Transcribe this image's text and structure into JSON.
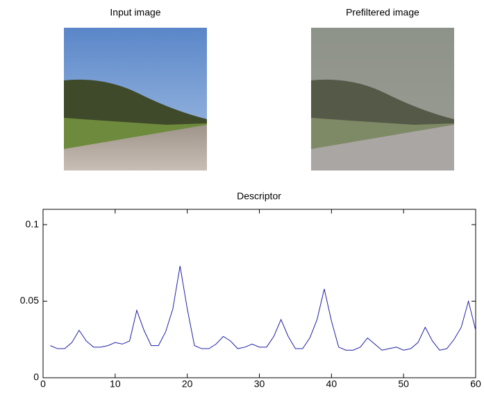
{
  "images": [
    {
      "title": "Input image"
    },
    {
      "title": "Prefiltered image"
    }
  ],
  "chart_data": {
    "type": "line",
    "title": "Descriptor",
    "x": [
      1,
      2,
      3,
      4,
      5,
      6,
      7,
      8,
      9,
      10,
      11,
      12,
      13,
      14,
      15,
      16,
      17,
      18,
      19,
      20,
      21,
      22,
      23,
      24,
      25,
      26,
      27,
      28,
      29,
      30,
      31,
      32,
      33,
      34,
      35,
      36,
      37,
      38,
      39,
      40,
      41,
      42,
      43,
      44,
      45,
      46,
      47,
      48,
      49,
      50,
      51,
      52,
      53,
      54,
      55,
      56,
      57,
      58,
      59,
      60
    ],
    "series": [
      {
        "color": "#1f1fa8",
        "values": [
          0.021,
          0.019,
          0.019,
          0.023,
          0.031,
          0.024,
          0.02,
          0.02,
          0.021,
          0.023,
          0.022,
          0.024,
          0.044,
          0.031,
          0.021,
          0.021,
          0.03,
          0.045,
          0.073,
          0.045,
          0.021,
          0.019,
          0.019,
          0.022,
          0.027,
          0.024,
          0.019,
          0.02,
          0.022,
          0.02,
          0.02,
          0.027,
          0.038,
          0.027,
          0.019,
          0.019,
          0.026,
          0.038,
          0.058,
          0.037,
          0.02,
          0.018,
          0.018,
          0.02,
          0.026,
          0.022,
          0.018,
          0.019,
          0.02,
          0.018,
          0.019,
          0.023,
          0.033,
          0.024,
          0.018,
          0.019,
          0.025,
          0.033,
          0.05,
          0.031
        ]
      }
    ],
    "xlim": [
      0,
      60
    ],
    "xticks": [
      0,
      10,
      20,
      30,
      40,
      50,
      60
    ],
    "ylim": [
      0,
      0.11
    ],
    "yticks": [
      0,
      0.05,
      0.1
    ]
  }
}
